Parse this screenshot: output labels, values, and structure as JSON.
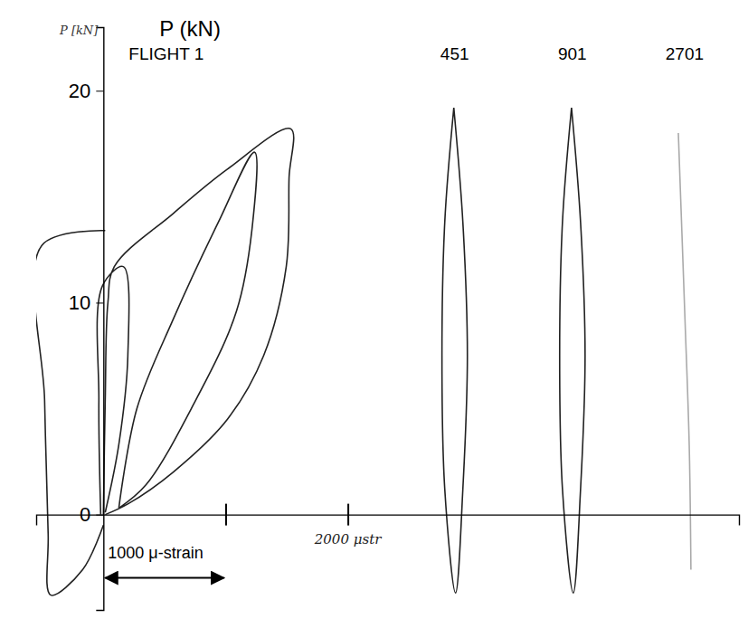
{
  "chart_data": {
    "type": "line",
    "y_label": "P (kN)",
    "xlim": [
      -550,
      5200
    ],
    "ylim": [
      -4.5,
      23
    ],
    "xticks": [
      1000,
      2000
    ],
    "yticks": [
      0,
      10,
      20
    ],
    "grid": false,
    "tick_labels": "y",
    "annotations": [
      "2000 μstr",
      "P [kN]"
    ],
    "scale_bar": {
      "value": 1000,
      "label": "1000 μ-strain"
    },
    "series": [
      {
        "name": "FLIGHT 1",
        "color": "#222222",
        "x": [
          0,
          15,
          37,
          89,
          570,
          1015,
          1533,
          1519,
          1496,
          1311,
          1015,
          570,
          200,
          15,
          null,
          126,
          274,
          570,
          941,
          1237,
          1222,
          1089,
          719,
          348,
          126,
          null,
          -22,
          -37,
          -7,
          163,
          200,
          126,
          15,
          null,
          15,
          -504,
          -481,
          -452,
          -430,
          -170,
          0
        ],
        "values": [
          0,
          5.4,
          10.0,
          11.7,
          14.2,
          16.3,
          18.2,
          15.9,
          11.7,
          7.5,
          4.5,
          2.0,
          0.5,
          0,
          null,
          0.3,
          5.0,
          9.2,
          13.8,
          17.1,
          13.8,
          9.6,
          5.0,
          1.4,
          0.3,
          null,
          0,
          5.4,
          10.8,
          11.7,
          7.5,
          3.3,
          0.1,
          null,
          13.4,
          12.7,
          5.4,
          -0.9,
          -3.8,
          -2.6,
          -0.5
        ]
      },
      {
        "name": "451",
        "color": "#222222",
        "x": [
          2867,
          2941,
          2978,
          2941,
          2881,
          2793,
          2770,
          2793,
          2867
        ],
        "values": [
          19.2,
          13.8,
          7.5,
          1.2,
          -3.7,
          1.2,
          7.5,
          13.8,
          19.2
        ]
      },
      {
        "name": "901",
        "color": "#222222",
        "x": [
          3830,
          3904,
          3941,
          3904,
          3844,
          3756,
          3733,
          3756,
          3830
        ],
        "values": [
          19.2,
          13.8,
          7.5,
          1.2,
          -3.7,
          1.2,
          7.5,
          13.8,
          19.2
        ]
      },
      {
        "name": "2701",
        "color": "#aaaaaa",
        "x": [
          4704,
          4756,
          4793,
          4807
        ],
        "values": [
          18.0,
          9.6,
          3.3,
          -2.6
        ]
      }
    ]
  }
}
